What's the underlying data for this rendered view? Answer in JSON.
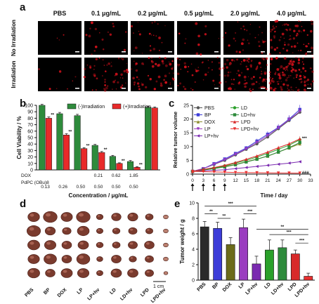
{
  "panels": {
    "a": {
      "label": "a",
      "columns": [
        "PBS",
        "0.1 μg/mL",
        "0.2 μg/mL",
        "0.5 μg/mL",
        "2.0 μg/mL",
        "4.0 μg/mL"
      ],
      "rows": [
        "No Irradiation",
        "Irradiation"
      ],
      "fluorescence_color": "#d0101a",
      "intensity_no_irradiation": [
        0.02,
        0.12,
        0.16,
        0.08,
        0.22,
        0.55
      ],
      "intensity_irradiation": [
        0.05,
        0.35,
        0.4,
        0.3,
        0.65,
        0.85
      ]
    },
    "b": {
      "label": "b"
    },
    "c": {
      "label": "c"
    },
    "d": {
      "label": "d",
      "columns": [
        "PBS",
        "BP",
        "DOX",
        "LP",
        "LP+hv",
        "LD",
        "LD+hv",
        "LPD",
        "LPD+hv"
      ],
      "scale_label": "1 cm"
    },
    "e": {
      "label": "e"
    }
  },
  "chart_data": [
    {
      "id": "b",
      "type": "bar",
      "ylabel": "Cell Viability / %",
      "xlabel": "Concentration /  μg/mL",
      "ylim": [
        0,
        100
      ],
      "yticks": [
        0,
        10,
        20,
        30,
        40,
        50,
        60,
        70,
        80,
        90,
        100
      ],
      "legend_placement": "top-center",
      "series": [
        {
          "name": "(-)Irradiation",
          "color": "#2e8b3c",
          "values": [
            100,
            87,
            84,
            38,
            21,
            13,
            97
          ],
          "errors": [
            1.5,
            2,
            2,
            1.5,
            1.5,
            1.5,
            1.5
          ]
        },
        {
          "name": "(+)Irradiation",
          "color": "#e82a2a",
          "values": [
            80,
            54,
            33,
            27,
            10,
            4,
            96
          ],
          "errors": [
            2,
            2,
            1.5,
            1.5,
            1,
            1,
            1.5
          ]
        }
      ],
      "significance": [
        "**",
        "**",
        "**",
        "**",
        "**",
        "**",
        ""
      ],
      "row_labels": [
        "DOX",
        "PdPC (OBu)8"
      ],
      "row_values_dox": [
        "",
        "",
        "",
        "0.21",
        "0.62",
        "1.85",
        ""
      ],
      "row_values_pdpc": [
        "0.13",
        "0.26",
        "0.50",
        "0.50",
        "0.50",
        "0.50",
        ""
      ]
    },
    {
      "id": "c",
      "type": "line",
      "ylabel": "Relative tumor volume",
      "xlabel": "Time / day",
      "ylim": [
        0,
        25
      ],
      "yticks": [
        0,
        5,
        10,
        15,
        20,
        25
      ],
      "xticks": [
        0,
        3,
        6,
        9,
        12,
        15,
        18,
        21,
        24,
        27,
        30,
        33
      ],
      "x": [
        0,
        3,
        6,
        9,
        12,
        15,
        18,
        21,
        24,
        27,
        30
      ],
      "injection_days": [
        0,
        3,
        6,
        9
      ],
      "legend_placement": "top-left",
      "series": [
        {
          "name": "PBS",
          "color": "#555555",
          "marker": "circle",
          "values": [
            1,
            2,
            3.5,
            5,
            7,
            9,
            11,
            13.5,
            16.5,
            19.5,
            22.5
          ]
        },
        {
          "name": "BP",
          "color": "#3d3dd8",
          "marker": "square",
          "values": [
            1,
            2,
            3.8,
            5.5,
            7.5,
            9.5,
            12,
            14.5,
            17,
            20,
            23.5
          ]
        },
        {
          "name": "DOX",
          "color": "#8a8a2a",
          "marker": "triangle",
          "values": [
            1,
            1.5,
            2,
            2.8,
            3.5,
            4.5,
            5.5,
            6.5,
            8,
            9.5,
            11
          ]
        },
        {
          "name": "LP",
          "color": "#9a3dc0",
          "marker": "triangle-down",
          "values": [
            1,
            2,
            3.6,
            5.2,
            7.2,
            9.2,
            11.5,
            14,
            16.8,
            19.8,
            22.8
          ]
        },
        {
          "name": "LP+hv",
          "color": "#7a2ab0",
          "marker": "triangle-left",
          "values": [
            1,
            1.2,
            1.4,
            1.6,
            2,
            2.4,
            2.8,
            3.2,
            3.6,
            4,
            4.5
          ]
        },
        {
          "name": "LD",
          "color": "#2aa02a",
          "marker": "circle",
          "values": [
            1,
            1.6,
            2.2,
            3,
            4,
            5,
            6.2,
            7.5,
            9,
            10.5,
            12.5
          ]
        },
        {
          "name": "LD+hv",
          "color": "#2e8b3c",
          "marker": "square",
          "values": [
            1,
            1.5,
            2,
            2.6,
            3.4,
            4.4,
            5.4,
            6.6,
            8,
            9.6,
            11.5
          ]
        },
        {
          "name": "LPD",
          "color": "#d82a2a",
          "marker": "triangle",
          "values": [
            1,
            1.7,
            2.4,
            3.2,
            4.2,
            5.4,
            6.6,
            8,
            9.6,
            11,
            12.8
          ]
        },
        {
          "name": "LPD+hv",
          "color": "#e83030",
          "marker": "triangle-down",
          "values": [
            1,
            0.9,
            0.8,
            0.7,
            0.6,
            0.55,
            0.5,
            0.45,
            0.4,
            0.38,
            0.35
          ]
        }
      ],
      "annotations": [
        "***",
        "###"
      ]
    },
    {
      "id": "e",
      "type": "bar",
      "ylabel": "Tumor weight / g",
      "ylim": [
        0,
        10
      ],
      "yticks": [
        0,
        2,
        4,
        6,
        8,
        10
      ],
      "categories": [
        "PBS",
        "BP",
        "DOX",
        "LP",
        "LP+hv",
        "LD",
        "LD+hv",
        "LPD",
        "LPD+hv"
      ],
      "values": [
        6.9,
        6.7,
        4.6,
        6.8,
        2.1,
        3.9,
        4.2,
        3.4,
        0.5
      ],
      "errors": [
        0.7,
        0.8,
        0.9,
        1.1,
        1.0,
        1.3,
        1.0,
        0.5,
        0.4
      ],
      "colors": [
        "#2a2a2a",
        "#3d3dd8",
        "#6b6b1a",
        "#9a3dc0",
        "#7a2ab0",
        "#2aa02a",
        "#2e8b3c",
        "#d82a2a",
        "#e83030"
      ],
      "comparisons": [
        {
          "from": 0,
          "to": 4,
          "label": "***"
        },
        {
          "from": 0,
          "to": 1,
          "label": "**"
        },
        {
          "from": 1,
          "to": 2,
          "label": "**"
        },
        {
          "from": 3,
          "to": 4,
          "label": "***"
        },
        {
          "from": 4,
          "to": 8,
          "label": "**"
        },
        {
          "from": 5,
          "to": 8,
          "label": "***"
        },
        {
          "from": 7,
          "to": 8,
          "label": "***"
        }
      ]
    }
  ]
}
